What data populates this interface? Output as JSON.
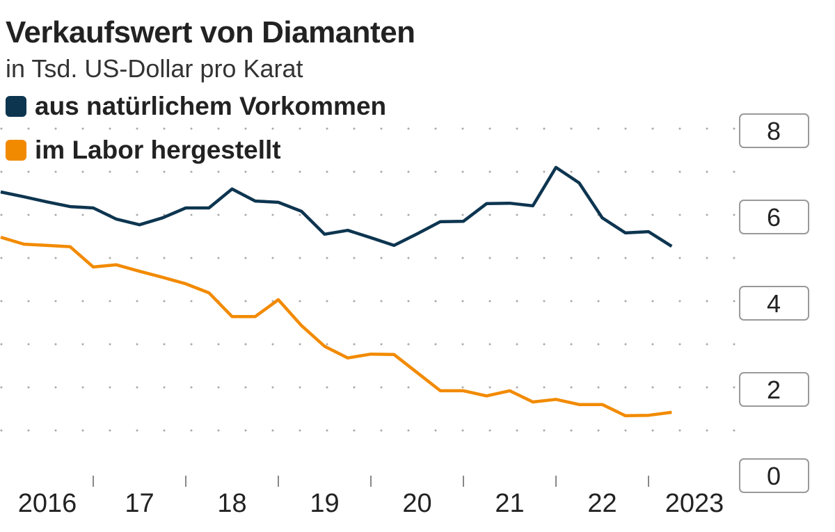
{
  "chart_data": {
    "type": "line",
    "title": "Verkaufswert von Diamanten",
    "subtitle": "in Tsd. US-Dollar pro Karat",
    "xlabel": "",
    "ylabel": "",
    "ylim": [
      0,
      8
    ],
    "yticks": [
      "0",
      "2",
      "4",
      "6",
      "8"
    ],
    "xtick_labels": [
      "2016",
      "17",
      "18",
      "19",
      "20",
      "21",
      "22",
      "2023"
    ],
    "grid": "dotted horizontal",
    "x": [
      "2016 Q1",
      "2016 Q2",
      "2016 Q3",
      "2016 Q4",
      "2017 Q1",
      "2017 Q2",
      "2017 Q3",
      "2017 Q4",
      "2018 Q1",
      "2018 Q2",
      "2018 Q3",
      "2018 Q4",
      "2019 Q1",
      "2019 Q2",
      "2019 Q3",
      "2019 Q4",
      "2020 Q1",
      "2020 Q2",
      "2020 Q3",
      "2020 Q4",
      "2021 Q1",
      "2021 Q2",
      "2021 Q3",
      "2021 Q4",
      "2022 Q1",
      "2022 Q2",
      "2022 Q3",
      "2022 Q4",
      "2023 Q1",
      "2023 Q2"
    ],
    "series": [
      {
        "name": "aus natürlichem Vorkommen",
        "color": "#0d3550",
        "values": [
          6.58,
          6.47,
          6.35,
          6.24,
          6.21,
          5.95,
          5.82,
          5.98,
          6.21,
          6.21,
          6.65,
          6.37,
          6.34,
          6.13,
          5.6,
          5.69,
          5.52,
          5.34,
          5.61,
          5.89,
          5.9,
          6.31,
          6.32,
          6.26,
          7.15,
          6.79,
          5.98,
          5.63,
          5.66,
          5.32
        ]
      },
      {
        "name": "im Labor hergestellt",
        "color": "#f28a00",
        "values": [
          5.53,
          5.37,
          5.34,
          5.31,
          4.84,
          4.89,
          4.74,
          4.6,
          4.45,
          4.24,
          3.69,
          3.69,
          4.08,
          3.48,
          3.0,
          2.73,
          2.82,
          2.81,
          2.39,
          1.97,
          1.97,
          1.85,
          1.97,
          1.71,
          1.77,
          1.65,
          1.65,
          1.39,
          1.4,
          1.47
        ]
      }
    ],
    "legend": "top-left"
  }
}
